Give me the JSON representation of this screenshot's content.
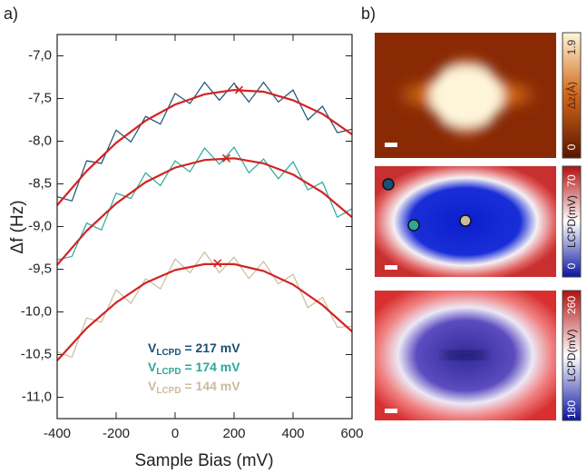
{
  "chart_data": {
    "type": "line",
    "panel_label": "a)",
    "x_label": "Sample Bias (mV)",
    "y_label": "Δf (Hz)",
    "xlim": [
      -400,
      600
    ],
    "xticks": [
      -400,
      -200,
      0,
      200,
      400,
      600
    ],
    "ylim": [
      -11.25,
      -6.75
    ],
    "yticks": [
      {
        "value": -7.0,
        "label": "-7,0"
      },
      {
        "value": -7.5,
        "label": "-7,5"
      },
      {
        "value": -8.0,
        "label": "-8,0"
      },
      {
        "value": -8.5,
        "label": "-8,5"
      },
      {
        "value": -9.0,
        "label": "-9,0"
      },
      {
        "value": -9.5,
        "label": "-9,5"
      },
      {
        "value": -10.0,
        "label": "-10,0"
      },
      {
        "value": -10.5,
        "label": "-10,5"
      },
      {
        "value": -11.0,
        "label": "-11,0"
      }
    ],
    "series": [
      {
        "color": "#1b4f73",
        "x": [
          -400,
          -350,
          -300,
          -250,
          -200,
          -150,
          -100,
          -50,
          0,
          50,
          100,
          150,
          200,
          250,
          300,
          350,
          400,
          450,
          500,
          550,
          600
        ],
        "values": [
          -8.65,
          -8.7,
          -8.23,
          -8.26,
          -7.87,
          -8.01,
          -7.71,
          -7.8,
          -7.44,
          -7.56,
          -7.31,
          -7.52,
          -7.32,
          -7.54,
          -7.31,
          -7.54,
          -7.4,
          -7.75,
          -7.59,
          -7.9,
          -7.86
        ]
      },
      {
        "color": "#2aa89c",
        "x": [
          -400,
          -350,
          -300,
          -250,
          -200,
          -150,
          -100,
          -50,
          0,
          50,
          100,
          150,
          200,
          250,
          300,
          350,
          400,
          450,
          500,
          550,
          600
        ],
        "values": [
          -9.39,
          -9.35,
          -8.96,
          -9.04,
          -8.61,
          -8.67,
          -8.37,
          -8.52,
          -8.23,
          -8.36,
          -8.08,
          -8.27,
          -8.07,
          -8.37,
          -8.21,
          -8.44,
          -8.24,
          -8.57,
          -8.48,
          -8.89,
          -8.79
        ]
      },
      {
        "color": "#cbbb9c",
        "x": [
          -400,
          -350,
          -300,
          -250,
          -200,
          -150,
          -100,
          -50,
          0,
          50,
          100,
          150,
          200,
          250,
          300,
          350,
          400,
          450,
          500,
          550,
          600
        ],
        "values": [
          -10.47,
          -10.53,
          -10.07,
          -10.12,
          -9.74,
          -9.9,
          -9.61,
          -9.73,
          -9.38,
          -9.54,
          -9.3,
          -9.54,
          -9.36,
          -9.61,
          -9.41,
          -9.67,
          -9.56,
          -9.95,
          -9.83,
          -10.18,
          -10.17
        ]
      },
      {
        "color": "#d42222",
        "x": [
          -400,
          -300,
          -200,
          -100,
          0,
          100,
          200,
          300,
          400,
          500,
          600
        ],
        "values": [
          -8.75,
          -8.35,
          -8.02,
          -7.76,
          -7.57,
          -7.45,
          -7.4,
          -7.42,
          -7.52,
          -7.68,
          -7.92
        ]
      },
      {
        "color": "#d42222",
        "x": [
          -400,
          -300,
          -200,
          -100,
          0,
          100,
          200,
          300,
          400,
          500,
          600
        ],
        "values": [
          -9.45,
          -9.05,
          -8.73,
          -8.48,
          -8.31,
          -8.22,
          -8.2,
          -8.26,
          -8.39,
          -8.6,
          -8.89
        ]
      },
      {
        "color": "#d42222",
        "x": [
          -400,
          -300,
          -200,
          -100,
          0,
          100,
          200,
          300,
          400,
          500,
          600
        ],
        "values": [
          -10.57,
          -10.19,
          -9.89,
          -9.66,
          -9.51,
          -9.44,
          -9.44,
          -9.52,
          -9.68,
          -9.92,
          -10.23
        ]
      }
    ],
    "maxima": {
      "color": "#d42222",
      "x": [
        217,
        174,
        144
      ],
      "values": [
        -7.4,
        -8.2,
        -9.43
      ]
    },
    "legend": [
      {
        "main": "V",
        "sub": "LCPD",
        "rest": " = 217 mV",
        "color": "#1b4f73"
      },
      {
        "main": "V",
        "sub": "LCPD",
        "rest": " = 174 mV",
        "color": "#2aa89c"
      },
      {
        "main": "V",
        "sub": "LCPD",
        "rest": " = 144 mV",
        "color": "#cbbb9c"
      }
    ]
  },
  "panel_b": {
    "label": "b)",
    "images": [
      {
        "cb_top": "1.9",
        "cb_mid": "Δz(Å)",
        "cb_bottom": "0"
      },
      {
        "cb_top": "70",
        "cb_mid": "LCPD(mV)",
        "cb_bottom": "0"
      },
      {
        "cb_top": "260",
        "cb_mid": "LCPD(mV)",
        "cb_bottom": "180"
      }
    ]
  }
}
